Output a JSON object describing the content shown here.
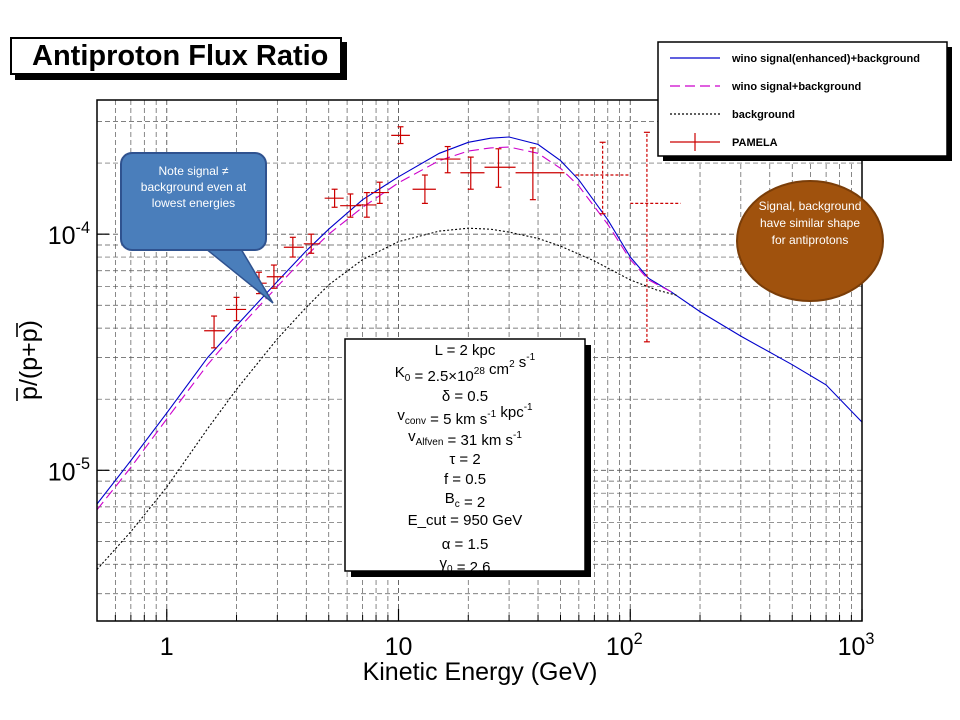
{
  "title": "Antiproton Flux Ratio",
  "callouts": {
    "note": "Note  signal ≠ background even at lowest energies",
    "shape": "Signal, background have similar shape for antiprotons"
  },
  "params": [
    {
      "base": "L = 2 kpc"
    },
    {
      "base": "K",
      "sub": "0",
      "rest": " = 2.5×10",
      "sup": "28",
      "tail": " cm",
      "sup2": "2",
      "tail2": " s",
      "sup3": "-1"
    },
    {
      "base": "δ = 0.5"
    },
    {
      "base": "v",
      "sub": "conv",
      "rest": " = 5 km s",
      "sup": "-1",
      "tail": " kpc",
      "sup2": "-1"
    },
    {
      "base": "v",
      "sub": "Alfven",
      "rest": " = 31 km s",
      "sup": "-1"
    },
    {
      "base": "τ = 2"
    },
    {
      "base": "f = 0.5"
    },
    {
      "base": "B",
      "sub": "c",
      "rest": " = 2"
    },
    {
      "base": "E_cut = 950 GeV"
    },
    {
      "base": "α = 1.5"
    },
    {
      "base": "γ",
      "sub": "0",
      "rest": " = 2.6"
    }
  ],
  "chart_data": {
    "type": "line",
    "title": "Antiproton Flux Ratio",
    "xlabel": "Kinetic Energy (GeV)",
    "ylabel": "p/(p+p)",
    "x_scale": "log",
    "y_scale": "log",
    "xlim": [
      0.5,
      1000
    ],
    "ylim": [
      2.3e-06,
      0.00037
    ],
    "grid": true,
    "legend_position": "top-right",
    "xticks": [
      {
        "base": "1"
      },
      {
        "base": "10"
      },
      {
        "base": "10",
        "exp": "2"
      },
      {
        "base": "10",
        "exp": "3"
      }
    ],
    "xtick_values": [
      1,
      10,
      100,
      1000
    ],
    "yticks": [
      {
        "base": "10",
        "exp": "-5"
      },
      {
        "base": "10",
        "exp": "-4"
      }
    ],
    "ytick_values": [
      1e-05,
      0.0001
    ],
    "colors": {
      "signal_enhanced": "#0000cc",
      "signal": "#cc00cc",
      "background": "#000000",
      "pamela": "#cc0000"
    },
    "series": [
      {
        "name": "wino signal(enhanced)+background",
        "style": "solid",
        "x": [
          0.5,
          0.7,
          1,
          1.5,
          2,
          3,
          4,
          5,
          7,
          10,
          15,
          20,
          25,
          30,
          40,
          50,
          60,
          80,
          100,
          120,
          150,
          200,
          300,
          500,
          700,
          1000
        ],
        "y": [
          7.2e-06,
          1.1e-05,
          1.75e-05,
          3e-05,
          4.1e-05,
          6.3e-05,
          8.5e-05,
          0.000105,
          0.00014,
          0.000175,
          0.00022,
          0.000245,
          0.000255,
          0.000258,
          0.00024,
          0.000205,
          0.00017,
          0.000115,
          8e-05,
          6.5e-05,
          5.7e-05,
          4.7e-05,
          3.7e-05,
          2.8e-05,
          2.3e-05,
          1.6e-05
        ]
      },
      {
        "name": "wino signal+background",
        "style": "dash",
        "x": [
          0.5,
          0.7,
          1,
          1.5,
          2,
          3,
          4,
          5,
          7,
          10,
          15,
          20,
          25,
          30,
          40,
          50,
          60,
          80,
          100,
          120,
          150
        ],
        "y": [
          6.8e-06,
          1.03e-05,
          1.65e-05,
          2.8e-05,
          3.9e-05,
          6e-05,
          8.1e-05,
          0.0001,
          0.00013,
          0.000165,
          0.000205,
          0.000225,
          0.000232,
          0.000234,
          0.00022,
          0.00019,
          0.00016,
          0.00011,
          7.8e-05,
          6.4e-05,
          5.7e-05
        ]
      },
      {
        "name": "background",
        "style": "dot",
        "x": [
          0.5,
          0.7,
          1,
          1.5,
          2,
          3,
          4,
          5,
          7,
          10,
          15,
          20,
          25,
          30,
          40,
          50,
          70,
          100,
          130,
          160
        ],
        "y": [
          3.8e-06,
          5.5e-06,
          8.5e-06,
          1.5e-05,
          2.2e-05,
          3.6e-05,
          4.9e-05,
          6.1e-05,
          7.8e-05,
          9.3e-05,
          0.000103,
          0.000106,
          0.000105,
          0.000102,
          9.6e-05,
          8.9e-05,
          7.7e-05,
          6.4e-05,
          5.8e-05,
          5.5e-05
        ]
      }
    ],
    "pamela": {
      "name": "PAMELA",
      "points": [
        {
          "x": 1.6,
          "y": 3.9e-05,
          "xlo": 1.45,
          "xhi": 1.78,
          "ylo": 3.3e-05,
          "yhi": 4.5e-05
        },
        {
          "x": 2.0,
          "y": 4.8e-05,
          "xlo": 1.8,
          "xhi": 2.2,
          "ylo": 4.3e-05,
          "yhi": 5.4e-05
        },
        {
          "x": 2.5,
          "y": 6.2e-05,
          "xlo": 2.3,
          "xhi": 2.7,
          "ylo": 5.6e-05,
          "yhi": 6.9e-05
        },
        {
          "x": 2.9,
          "y": 6.6e-05,
          "xlo": 2.7,
          "xhi": 3.2,
          "ylo": 5.9e-05,
          "yhi": 7.4e-05
        },
        {
          "x": 3.5,
          "y": 8.8e-05,
          "xlo": 3.2,
          "xhi": 3.9,
          "ylo": 8e-05,
          "yhi": 9.7e-05
        },
        {
          "x": 4.2,
          "y": 9.1e-05,
          "xlo": 3.9,
          "xhi": 4.6,
          "ylo": 8.3e-05,
          "yhi": 0.0001
        },
        {
          "x": 5.3,
          "y": 0.000142,
          "xlo": 4.8,
          "xhi": 5.8,
          "ylo": 0.00013,
          "yhi": 0.000155
        },
        {
          "x": 6.2,
          "y": 0.000132,
          "xlo": 5.6,
          "xhi": 6.9,
          "ylo": 0.000118,
          "yhi": 0.000148
        },
        {
          "x": 7.3,
          "y": 0.000133,
          "xlo": 6.6,
          "xhi": 8.0,
          "ylo": 0.000118,
          "yhi": 0.00015
        },
        {
          "x": 8.3,
          "y": 0.00015,
          "xlo": 7.6,
          "xhi": 9.1,
          "ylo": 0.000135,
          "yhi": 0.000166
        },
        {
          "x": 10.2,
          "y": 0.000262,
          "xlo": 9.3,
          "xhi": 11.2,
          "ylo": 0.000242,
          "yhi": 0.000285
        },
        {
          "x": 13,
          "y": 0.000155,
          "xlo": 11.5,
          "xhi": 14.5,
          "ylo": 0.000135,
          "yhi": 0.000178
        },
        {
          "x": 16.3,
          "y": 0.000208,
          "xlo": 14.5,
          "xhi": 18.5,
          "ylo": 0.000182,
          "yhi": 0.000235
        },
        {
          "x": 20.5,
          "y": 0.000182,
          "xlo": 18.5,
          "xhi": 23.5,
          "ylo": 0.000155,
          "yhi": 0.000212
        },
        {
          "x": 27,
          "y": 0.000192,
          "xlo": 23.5,
          "xhi": 32,
          "ylo": 0.000158,
          "yhi": 0.00023
        },
        {
          "x": 38,
          "y": 0.000182,
          "xlo": 32,
          "xhi": 52,
          "ylo": 0.00014,
          "yhi": 0.000232
        },
        {
          "x": 76,
          "y": 0.000178,
          "xlo": 58,
          "xhi": 100,
          "ylo": 0.000122,
          "yhi": 0.000245
        },
        {
          "x": 118,
          "y": 0.000135,
          "xlo": 100,
          "xhi": 165,
          "ylo": 3.5e-05,
          "yhi": 0.00027
        }
      ]
    }
  }
}
